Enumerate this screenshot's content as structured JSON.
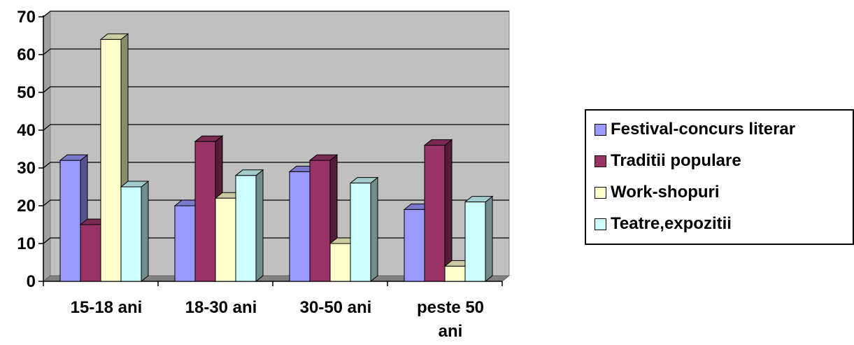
{
  "chart_data": {
    "type": "bar",
    "categories": [
      [
        "15-18 ani"
      ],
      [
        "18-30 ani"
      ],
      [
        "30-50 ani"
      ],
      [
        "peste 50",
        "ani"
      ]
    ],
    "series": [
      {
        "name": "Festival-concurs literar",
        "values": [
          32,
          20,
          29,
          19
        ],
        "color": "#9999FF"
      },
      {
        "name": "Traditii populare",
        "values": [
          15,
          37,
          32,
          36
        ],
        "color": "#993366"
      },
      {
        "name": "Work-shopuri",
        "values": [
          64,
          22,
          10,
          4
        ],
        "color": "#FFFFCC"
      },
      {
        "name": "Teatre,expozitii",
        "values": [
          25,
          28,
          26,
          21
        ],
        "color": "#CCFFFF"
      }
    ],
    "ylim": [
      0,
      70
    ],
    "yticks": [
      "0",
      "10",
      "20",
      "30",
      "40",
      "50",
      "60",
      "70"
    ],
    "title": "",
    "xlabel": "",
    "ylabel": "",
    "grid": true,
    "wall_color": "#C0C0C0",
    "legend_position": "right"
  }
}
